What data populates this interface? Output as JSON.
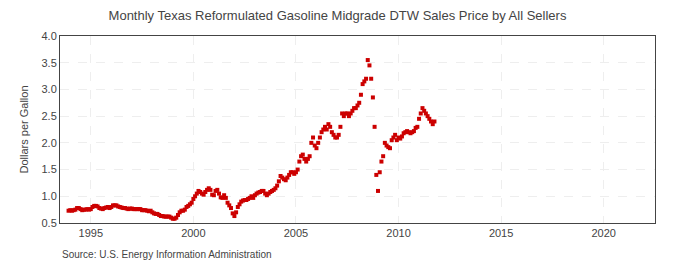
{
  "chart_data": {
    "type": "scatter",
    "title": "Monthly Texas Reformulated Gasoline Midgrade DTW Sales Price by All Sellers",
    "ylabel": "Dollars per Gallon",
    "annotations": [
      "Source: U.S. Energy Information Administration"
    ],
    "color": "#cc0000",
    "marker": "square",
    "grid": true,
    "xlim": [
      1993.5,
      2022.5
    ],
    "ylim": [
      0.5,
      4.0
    ],
    "xticks": [
      1995,
      2000,
      2005,
      2010,
      2015,
      2020
    ],
    "yticks": [
      0.5,
      {
        "value": 1.0,
        "label": "1.0"
      },
      1.5,
      {
        "value": 2.0,
        "label": "2.0"
      },
      2.5,
      {
        "value": 3.0,
        "label": "3.0"
      },
      3.5,
      {
        "value": 4.0,
        "label": "4.0"
      }
    ],
    "x": [
      1993.917,
      1994.0,
      1994.083,
      1994.167,
      1994.25,
      1994.333,
      1994.417,
      1994.5,
      1994.583,
      1994.667,
      1994.75,
      1994.833,
      1994.917,
      1995.0,
      1995.083,
      1995.167,
      1995.25,
      1995.333,
      1995.417,
      1995.5,
      1995.583,
      1995.667,
      1995.75,
      1995.833,
      1995.917,
      1996.0,
      1996.083,
      1996.167,
      1996.25,
      1996.333,
      1996.417,
      1996.5,
      1996.583,
      1996.667,
      1996.75,
      1996.833,
      1996.917,
      1997.0,
      1997.083,
      1997.167,
      1997.25,
      1997.333,
      1997.417,
      1997.5,
      1997.583,
      1997.667,
      1997.75,
      1997.833,
      1997.917,
      1998.0,
      1998.083,
      1998.167,
      1998.25,
      1998.333,
      1998.417,
      1998.5,
      1998.583,
      1998.667,
      1998.75,
      1998.833,
      1998.917,
      1999.0,
      1999.083,
      1999.167,
      1999.25,
      1999.333,
      1999.417,
      1999.5,
      1999.583,
      1999.667,
      1999.75,
      1999.833,
      1999.917,
      2000.0,
      2000.083,
      2000.167,
      2000.25,
      2000.333,
      2000.417,
      2000.5,
      2000.583,
      2000.667,
      2000.75,
      2000.833,
      2000.917,
      2001.0,
      2001.083,
      2001.167,
      2001.25,
      2001.333,
      2001.417,
      2001.5,
      2001.583,
      2001.667,
      2001.75,
      2001.833,
      2001.917,
      2002.0,
      2002.083,
      2002.167,
      2002.25,
      2002.333,
      2002.417,
      2002.5,
      2002.583,
      2002.667,
      2002.75,
      2002.833,
      2002.917,
      2003.0,
      2003.083,
      2003.167,
      2003.25,
      2003.333,
      2003.417,
      2003.5,
      2003.583,
      2003.667,
      2003.75,
      2003.833,
      2003.917,
      2004.0,
      2004.083,
      2004.167,
      2004.25,
      2004.333,
      2004.417,
      2004.5,
      2004.583,
      2004.667,
      2004.75,
      2004.833,
      2004.917,
      2005.0,
      2005.083,
      2005.167,
      2005.25,
      2005.333,
      2005.417,
      2005.5,
      2005.583,
      2005.667,
      2005.75,
      2005.833,
      2005.917,
      2006.0,
      2006.083,
      2006.167,
      2006.25,
      2006.333,
      2006.417,
      2006.5,
      2006.583,
      2006.667,
      2006.75,
      2006.833,
      2006.917,
      2007.0,
      2007.083,
      2007.167,
      2007.25,
      2007.333,
      2007.417,
      2007.5,
      2007.583,
      2007.667,
      2007.75,
      2007.833,
      2007.917,
      2008.0,
      2008.083,
      2008.167,
      2008.25,
      2008.333,
      2008.417,
      2008.5,
      2008.583,
      2008.667,
      2008.75,
      2008.833,
      2008.917,
      2009.0,
      2009.083,
      2009.167,
      2009.25,
      2009.333,
      2009.417,
      2009.5,
      2009.583,
      2009.667,
      2009.75,
      2009.833,
      2009.917,
      2010.0,
      2010.083,
      2010.167,
      2010.25,
      2010.333,
      2010.417,
      2010.5,
      2010.583,
      2010.667,
      2010.75,
      2010.833,
      2010.917,
      2011.0,
      2011.083,
      2011.167,
      2011.25,
      2011.333,
      2011.417,
      2011.5,
      2011.583,
      2011.667,
      2011.75
    ],
    "values": [
      0.73,
      0.74,
      0.73,
      0.74,
      0.75,
      0.78,
      0.78,
      0.76,
      0.74,
      0.75,
      0.75,
      0.76,
      0.75,
      0.76,
      0.8,
      0.82,
      0.82,
      0.81,
      0.78,
      0.77,
      0.76,
      0.78,
      0.79,
      0.8,
      0.78,
      0.8,
      0.83,
      0.83,
      0.83,
      0.81,
      0.8,
      0.79,
      0.78,
      0.78,
      0.77,
      0.76,
      0.77,
      0.77,
      0.76,
      0.76,
      0.76,
      0.76,
      0.76,
      0.74,
      0.74,
      0.74,
      0.73,
      0.72,
      0.73,
      0.7,
      0.68,
      0.67,
      0.67,
      0.65,
      0.63,
      0.63,
      0.62,
      0.62,
      0.62,
      0.62,
      0.6,
      0.58,
      0.58,
      0.6,
      0.65,
      0.7,
      0.73,
      0.73,
      0.75,
      0.8,
      0.82,
      0.85,
      0.88,
      0.95,
      1.0,
      1.05,
      1.1,
      1.08,
      1.05,
      1.03,
      1.08,
      1.12,
      1.15,
      1.12,
      1.03,
      1.02,
      1.1,
      1.12,
      1.05,
      0.98,
      0.97,
      1.02,
      0.97,
      0.88,
      0.83,
      0.78,
      0.68,
      0.63,
      0.7,
      0.8,
      0.85,
      0.9,
      0.92,
      0.93,
      0.93,
      0.95,
      0.97,
      1.0,
      0.97,
      1.02,
      1.05,
      1.07,
      1.08,
      1.1,
      1.1,
      1.05,
      1.02,
      1.05,
      1.08,
      1.1,
      1.12,
      1.15,
      1.2,
      1.28,
      1.38,
      1.35,
      1.32,
      1.3,
      1.35,
      1.4,
      1.45,
      1.45,
      1.42,
      1.45,
      1.5,
      1.65,
      1.75,
      1.78,
      1.7,
      1.65,
      1.7,
      1.75,
      2.0,
      2.1,
      1.95,
      1.9,
      2.0,
      2.1,
      2.2,
      2.25,
      2.3,
      2.25,
      2.35,
      2.3,
      2.2,
      2.15,
      2.1,
      2.1,
      2.15,
      2.3,
      2.55,
      2.5,
      2.55,
      2.55,
      2.5,
      2.55,
      2.6,
      2.65,
      2.65,
      2.7,
      2.75,
      2.9,
      3.1,
      3.15,
      3.2,
      3.55,
      3.45,
      3.2,
      2.85,
      2.3,
      1.4,
      1.1,
      1.45,
      1.65,
      1.75,
      2.0,
      1.95,
      1.92,
      1.9,
      2.05,
      2.1,
      2.15,
      2.05,
      2.1,
      2.08,
      2.12,
      2.18,
      2.2,
      2.22,
      2.2,
      2.18,
      2.2,
      2.22,
      2.28,
      2.3,
      2.45,
      2.55,
      2.65,
      2.6,
      2.55,
      2.5,
      2.45,
      2.4,
      2.35,
      2.4
    ]
  }
}
